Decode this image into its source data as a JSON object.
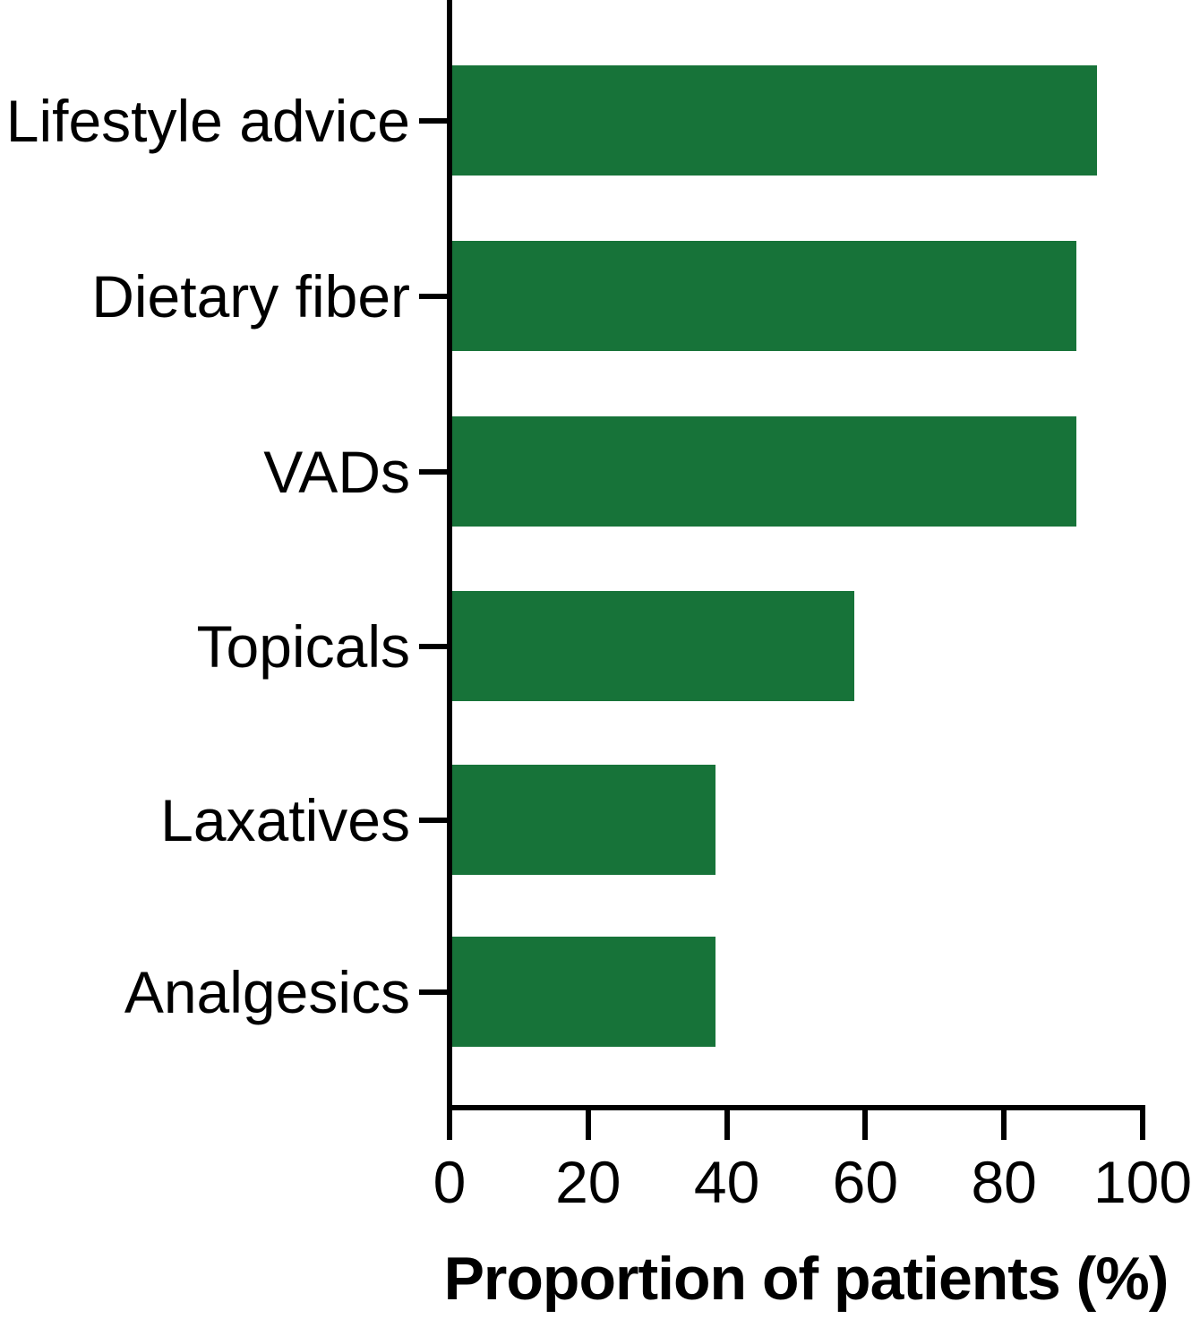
{
  "chart_data": {
    "type": "bar",
    "orientation": "horizontal",
    "title": "",
    "xlabel": "Proportion of patients (%)",
    "ylabel": "",
    "categories": [
      "Lifestyle advice",
      "Dietary fiber",
      "VADs",
      "Topicals",
      "Laxatives",
      "Analgesics"
    ],
    "values": [
      93,
      90,
      90,
      58,
      38,
      38
    ],
    "x_ticks": [
      "0",
      "20",
      "40",
      "60",
      "80",
      "100"
    ],
    "x_tick_values": [
      0,
      20,
      40,
      60,
      80,
      100
    ],
    "xlim": [
      0,
      100
    ],
    "grid": false,
    "legend": false,
    "bar_color": "#177339",
    "axis_color": "#000000",
    "text_color": "#000000",
    "background_color": "#ffffff"
  }
}
